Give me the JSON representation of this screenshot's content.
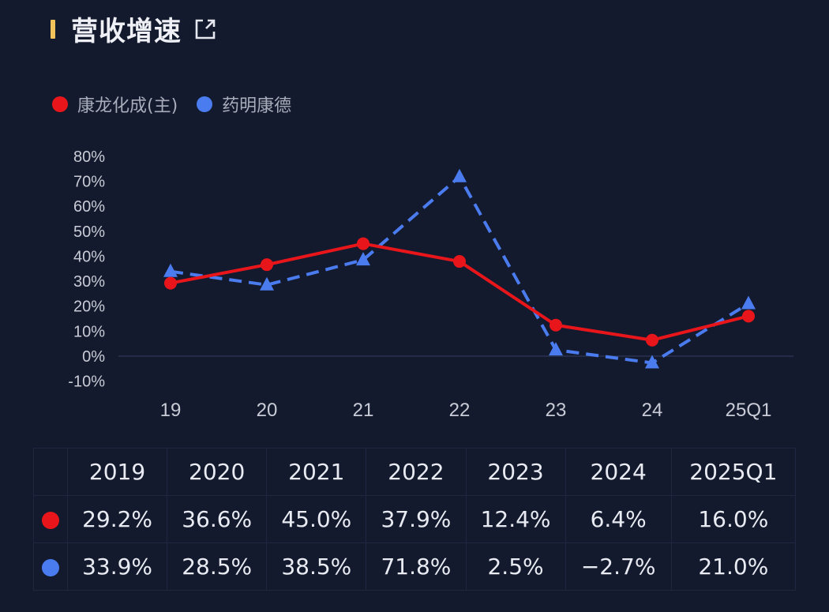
{
  "header": {
    "title": "营收增速",
    "icon": "external-link-icon"
  },
  "colors": {
    "accent": "#f2c35a",
    "series_red": "#e8161b",
    "series_blue": "#4a7cf0"
  },
  "chart_data": {
    "type": "line",
    "categories": [
      "19",
      "20",
      "21",
      "22",
      "23",
      "24",
      "25Q1"
    ],
    "series": [
      {
        "name": "康龙化成(主)",
        "values": [
          29.2,
          36.6,
          45.0,
          37.9,
          12.4,
          6.4,
          16.0
        ],
        "style": "solid",
        "marker": "circle"
      },
      {
        "name": "药明康德",
        "values": [
          33.9,
          28.5,
          38.5,
          71.8,
          2.5,
          -2.7,
          21.0
        ],
        "style": "dashed",
        "marker": "triangle"
      }
    ],
    "yticks": [
      "80%",
      "70%",
      "60%",
      "50%",
      "40%",
      "30%",
      "20%",
      "10%",
      "0%",
      "-10%"
    ],
    "ylim": [
      -10,
      80
    ],
    "legend": "top-left"
  },
  "table": {
    "headers": [
      "2019",
      "2020",
      "2021",
      "2022",
      "2023",
      "2024",
      "2025Q1"
    ],
    "rows": [
      [
        "29.2%",
        "36.6%",
        "45.0%",
        "37.9%",
        "12.4%",
        "6.4%",
        "16.0%"
      ],
      [
        "33.9%",
        "28.5%",
        "38.5%",
        "71.8%",
        "2.5%",
        "−2.7%",
        "21.0%"
      ]
    ]
  }
}
